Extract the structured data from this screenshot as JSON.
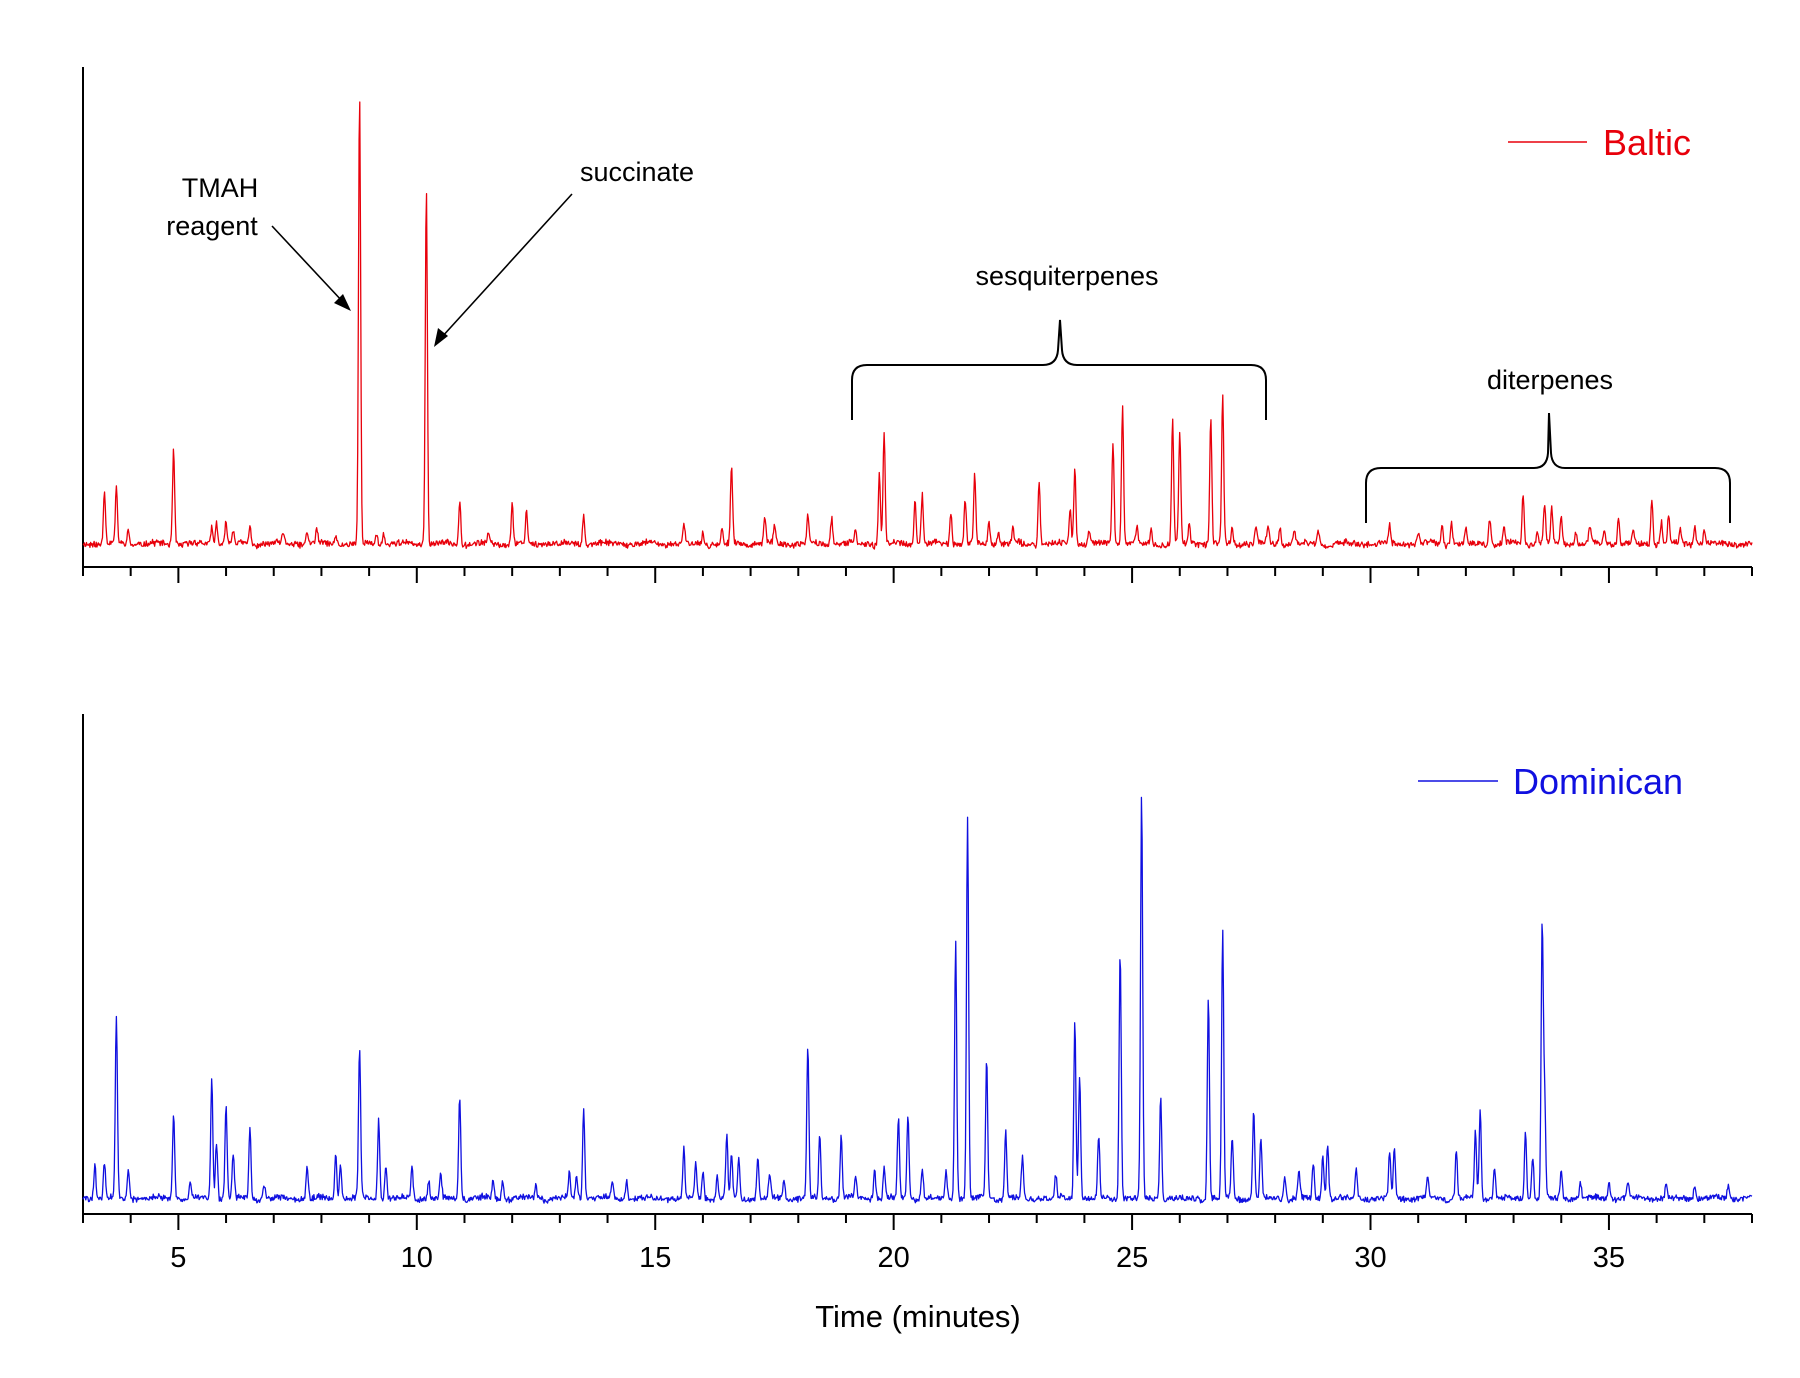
{
  "chart_data": {
    "type": "line",
    "xlabel": "Time (minutes)",
    "xlim": [
      3,
      38
    ],
    "xticks": [
      5,
      10,
      15,
      20,
      25,
      30,
      35
    ],
    "x_minor_step": 1,
    "series": [
      {
        "name": "Baltic",
        "color": "#e8000b",
        "ylim": [
          0,
          100
        ],
        "baseline": 2.5,
        "peaks": [
          [
            3.45,
            12
          ],
          [
            3.7,
            12
          ],
          [
            3.95,
            3
          ],
          [
            4.9,
            21
          ],
          [
            5.7,
            4
          ],
          [
            5.8,
            5
          ],
          [
            6.0,
            5
          ],
          [
            6.15,
            3
          ],
          [
            6.5,
            4
          ],
          [
            7.2,
            2
          ],
          [
            7.7,
            3
          ],
          [
            7.9,
            3
          ],
          [
            8.3,
            2
          ],
          [
            8.8,
            100
          ],
          [
            9.15,
            2.5
          ],
          [
            9.3,
            2.5
          ],
          [
            10.2,
            79
          ],
          [
            10.9,
            10
          ],
          [
            11.5,
            2
          ],
          [
            12.0,
            9
          ],
          [
            12.3,
            7
          ],
          [
            13.5,
            7
          ],
          [
            15.6,
            4
          ],
          [
            16.0,
            2.5
          ],
          [
            16.4,
            3
          ],
          [
            16.6,
            17
          ],
          [
            17.3,
            6
          ],
          [
            17.5,
            4
          ],
          [
            18.2,
            6
          ],
          [
            18.7,
            6
          ],
          [
            19.2,
            2.5
          ],
          [
            19.7,
            16
          ],
          [
            19.8,
            25
          ],
          [
            20.45,
            10
          ],
          [
            20.6,
            11
          ],
          [
            21.2,
            7
          ],
          [
            21.5,
            10
          ],
          [
            21.7,
            15
          ],
          [
            22.0,
            5
          ],
          [
            22.2,
            3
          ],
          [
            22.5,
            3
          ],
          [
            23.05,
            14
          ],
          [
            23.7,
            8
          ],
          [
            23.8,
            17
          ],
          [
            24.1,
            3
          ],
          [
            24.6,
            23
          ],
          [
            24.8,
            31
          ],
          [
            25.1,
            4
          ],
          [
            25.4,
            3
          ],
          [
            25.85,
            28
          ],
          [
            26.0,
            25
          ],
          [
            26.2,
            4
          ],
          [
            26.65,
            28
          ],
          [
            26.9,
            33
          ],
          [
            27.1,
            3.5
          ],
          [
            27.6,
            4
          ],
          [
            27.85,
            4
          ],
          [
            28.1,
            4
          ],
          [
            28.4,
            3
          ],
          [
            28.9,
            3.5
          ],
          [
            30.4,
            4
          ],
          [
            31.0,
            2.5
          ],
          [
            31.5,
            4
          ],
          [
            31.7,
            5
          ],
          [
            32.0,
            3
          ],
          [
            32.5,
            6
          ],
          [
            32.8,
            4
          ],
          [
            33.2,
            11
          ],
          [
            33.5,
            3
          ],
          [
            33.65,
            9
          ],
          [
            33.8,
            8
          ],
          [
            34.0,
            6
          ],
          [
            34.3,
            3
          ],
          [
            34.6,
            4
          ],
          [
            34.9,
            3
          ],
          [
            35.2,
            6
          ],
          [
            35.5,
            3
          ],
          [
            35.9,
            10
          ],
          [
            36.1,
            5
          ],
          [
            36.25,
            6
          ],
          [
            36.5,
            3
          ],
          [
            36.8,
            4
          ],
          [
            37.0,
            3
          ]
        ]
      },
      {
        "name": "Dominican",
        "color": "#1010e0",
        "ylim": [
          0,
          100
        ],
        "baseline": 1.5,
        "peaks": [
          [
            3.25,
            8
          ],
          [
            3.45,
            8
          ],
          [
            3.7,
            41
          ],
          [
            3.95,
            7
          ],
          [
            4.9,
            19
          ],
          [
            5.25,
            4
          ],
          [
            5.7,
            27
          ],
          [
            5.8,
            13
          ],
          [
            6.0,
            21
          ],
          [
            6.15,
            10
          ],
          [
            6.5,
            16
          ],
          [
            6.8,
            3
          ],
          [
            7.7,
            7
          ],
          [
            8.3,
            10
          ],
          [
            8.4,
            8
          ],
          [
            8.8,
            34
          ],
          [
            9.2,
            18
          ],
          [
            9.35,
            8
          ],
          [
            9.9,
            7
          ],
          [
            10.25,
            4
          ],
          [
            10.5,
            6
          ],
          [
            10.9,
            23
          ],
          [
            11.6,
            4
          ],
          [
            11.8,
            4
          ],
          [
            12.5,
            3
          ],
          [
            13.2,
            6
          ],
          [
            13.35,
            5
          ],
          [
            13.5,
            20
          ],
          [
            14.1,
            4
          ],
          [
            14.4,
            4
          ],
          [
            15.6,
            11
          ],
          [
            15.85,
            8
          ],
          [
            16.0,
            6
          ],
          [
            16.3,
            5
          ],
          [
            16.5,
            14
          ],
          [
            16.6,
            10
          ],
          [
            16.75,
            9
          ],
          [
            17.15,
            9
          ],
          [
            17.4,
            5
          ],
          [
            17.7,
            4
          ],
          [
            18.2,
            34
          ],
          [
            18.45,
            14
          ],
          [
            18.9,
            14
          ],
          [
            19.2,
            5
          ],
          [
            19.6,
            7
          ],
          [
            19.8,
            7
          ],
          [
            20.1,
            18
          ],
          [
            20.3,
            19
          ],
          [
            20.6,
            7
          ],
          [
            21.1,
            6
          ],
          [
            21.3,
            58
          ],
          [
            21.55,
            86
          ],
          [
            21.95,
            31
          ],
          [
            22.35,
            15
          ],
          [
            22.7,
            9
          ],
          [
            23.4,
            5
          ],
          [
            23.8,
            40
          ],
          [
            23.9,
            28
          ],
          [
            24.3,
            14
          ],
          [
            24.75,
            56
          ],
          [
            25.2,
            91
          ],
          [
            25.6,
            23
          ],
          [
            26.6,
            45
          ],
          [
            26.9,
            60
          ],
          [
            27.1,
            14
          ],
          [
            27.55,
            20
          ],
          [
            27.7,
            13
          ],
          [
            28.2,
            5
          ],
          [
            28.5,
            6
          ],
          [
            28.8,
            8
          ],
          [
            29.0,
            10
          ],
          [
            29.1,
            13
          ],
          [
            29.7,
            7
          ],
          [
            30.4,
            10
          ],
          [
            30.5,
            11
          ],
          [
            31.2,
            5
          ],
          [
            31.8,
            11
          ],
          [
            32.2,
            15
          ],
          [
            32.3,
            20
          ],
          [
            32.6,
            7
          ],
          [
            33.25,
            15
          ],
          [
            33.4,
            10
          ],
          [
            33.6,
            61
          ],
          [
            33.65,
            23
          ],
          [
            34.0,
            6
          ],
          [
            34.4,
            4
          ],
          [
            35.0,
            4
          ],
          [
            35.4,
            4
          ],
          [
            36.2,
            3
          ],
          [
            36.8,
            3
          ],
          [
            37.5,
            3
          ]
        ]
      }
    ],
    "annotations": {
      "tmah_line1": "TMAH",
      "tmah_line2": "reagent",
      "succinate": "succinate",
      "sesquiterpenes": "sesquiterpenes",
      "diterpenes": "diterpenes"
    },
    "legend": {
      "placement": "top-right"
    }
  }
}
